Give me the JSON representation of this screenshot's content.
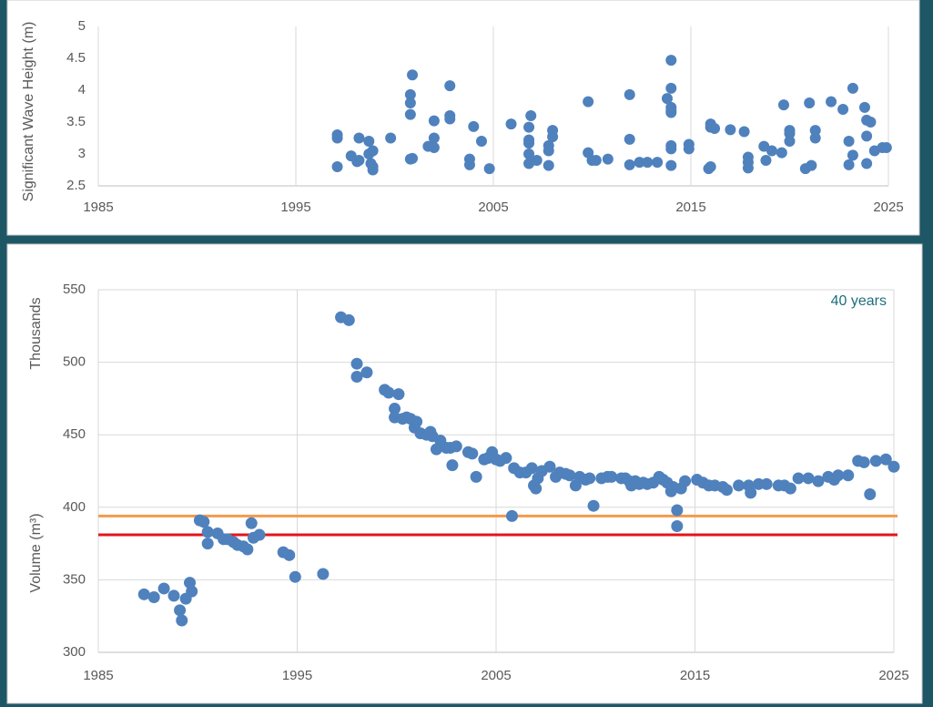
{
  "chart_data": [
    {
      "type": "scatter",
      "y_label": "Significant Wave Height (m)",
      "color": "#4f81bd",
      "grid": "x",
      "xlim": [
        1985,
        2025
      ],
      "xticks": [
        1985,
        1995,
        2005,
        2015,
        2025
      ],
      "ylim": [
        2.5,
        5
      ],
      "yticks": [
        2.5,
        3,
        3.5,
        4,
        4.5,
        5
      ],
      "x": [
        1997.1,
        1997.1,
        1997.1,
        1997.8,
        1998.1,
        1998.2,
        1998.2,
        1998.7,
        1998.7,
        1998.8,
        1998.9,
        1998.9,
        1998.9,
        1999.8,
        2000.8,
        2000.8,
        2000.8,
        2000.8,
        2000.9,
        2000.9,
        2001.7,
        2002.0,
        2002.0,
        2002.0,
        2002.8,
        2002.8,
        2002.8,
        2004.0,
        2003.8,
        2003.8,
        2004.4,
        2004.8,
        2005.9,
        2006.8,
        2006.9,
        2006.8,
        2006.8,
        2006.8,
        2006.8,
        2007.2,
        2007.8,
        2007.8,
        2007.8,
        2008.0,
        2008.0,
        2009.8,
        2009.8,
        2010.0,
        2010.2,
        2010.8,
        2011.9,
        2011.9,
        2011.9,
        2012.4,
        2012.8,
        2013.3,
        2013.8,
        2014.0,
        2014.0,
        2014.0,
        2014.0,
        2014.0,
        2014.0,
        2014.0,
        2014.0,
        2014.9,
        2014.9,
        2015.9,
        2016.0,
        2016.0,
        2016.0,
        2016.2,
        2017.0,
        2017.7,
        2017.9,
        2017.9,
        2017.9,
        2018.7,
        2018.8,
        2019.1,
        2019.6,
        2019.7,
        2020.0,
        2020.0,
        2020.0,
        2020.8,
        2021.0,
        2021.1,
        2021.3,
        2021.3,
        2022.1,
        2022.7,
        2023.0,
        2023.0,
        2023.2,
        2023.2,
        2023.8,
        2023.9,
        2023.9,
        2023.9,
        2024.1,
        2024.3,
        2024.7,
        2024.9
      ],
      "values": [
        3.3,
        3.25,
        2.8,
        2.97,
        2.88,
        3.25,
        2.9,
        3.2,
        3.0,
        2.85,
        3.05,
        2.8,
        2.75,
        3.25,
        3.93,
        3.8,
        3.62,
        2.92,
        4.24,
        2.93,
        3.12,
        3.52,
        3.25,
        3.1,
        4.07,
        3.6,
        3.55,
        3.43,
        2.92,
        2.83,
        3.2,
        2.77,
        3.47,
        3.42,
        3.6,
        3.22,
        3.17,
        3.0,
        2.85,
        2.9,
        3.13,
        3.05,
        2.82,
        3.27,
        3.37,
        3.82,
        3.02,
        2.9,
        2.9,
        2.92,
        3.93,
        3.23,
        2.83,
        2.87,
        2.87,
        2.87,
        3.87,
        4.47,
        4.03,
        3.73,
        3.65,
        3.68,
        3.13,
        3.08,
        2.82,
        3.15,
        3.08,
        2.77,
        2.8,
        3.42,
        3.47,
        3.4,
        3.38,
        3.35,
        2.95,
        2.87,
        2.78,
        3.12,
        2.9,
        3.05,
        3.02,
        3.77,
        3.37,
        3.32,
        3.2,
        2.77,
        3.8,
        2.82,
        3.37,
        3.25,
        3.82,
        3.7,
        3.2,
        2.83,
        4.03,
        2.98,
        3.73,
        2.85,
        3.28,
        3.53,
        3.5,
        3.05,
        3.1,
        3.1
      ]
    },
    {
      "type": "scatter",
      "y_label": "Volume (m³)",
      "y_unit": "Thousands",
      "annotation": "40 years",
      "color": "#4f81bd",
      "grid": "both",
      "xlim": [
        1985,
        2025
      ],
      "xticks": [
        1985,
        1995,
        2005,
        2015,
        2025
      ],
      "ylim": [
        300,
        550
      ],
      "yticks": [
        300,
        350,
        400,
        450,
        500,
        550
      ],
      "reference_lines": [
        {
          "value": 394,
          "color": "#f39a4c"
        },
        {
          "value": 381,
          "color": "#e3151c"
        }
      ],
      "x": [
        1987.3,
        1987.8,
        1988.3,
        1988.8,
        1989.1,
        1989.2,
        1989.4,
        1989.6,
        1989.7,
        1990.1,
        1990.3,
        1990.5,
        1990.5,
        1991.0,
        1991.3,
        1991.5,
        1991.8,
        1992.0,
        1992.3,
        1992.5,
        1992.7,
        1992.8,
        1993.1,
        1994.3,
        1994.6,
        1994.9,
        1996.3,
        1997.2,
        1997.6,
        1998.0,
        1998.0,
        1998.5,
        1999.4,
        1999.6,
        1999.9,
        1999.9,
        2000.1,
        2000.3,
        2000.5,
        2000.7,
        2000.9,
        2001.0,
        2001.2,
        2001.5,
        2001.7,
        2001.8,
        2002.0,
        2002.2,
        2002.5,
        2002.7,
        2002.8,
        2003.0,
        2003.6,
        2003.8,
        2004.0,
        2004.4,
        2004.6,
        2004.8,
        2005.0,
        2005.2,
        2005.5,
        2005.8,
        2005.9,
        2006.2,
        2006.5,
        2006.8,
        2006.9,
        2007.0,
        2007.1,
        2007.3,
        2007.7,
        2008.0,
        2008.2,
        2008.5,
        2008.7,
        2009.0,
        2009.2,
        2009.5,
        2009.7,
        2009.9,
        2010.3,
        2010.6,
        2010.8,
        2011.3,
        2011.5,
        2011.7,
        2011.8,
        2012.0,
        2012.2,
        2012.4,
        2012.6,
        2012.9,
        2013.2,
        2013.4,
        2013.6,
        2013.8,
        2013.9,
        2014.1,
        2014.1,
        2014.3,
        2014.5,
        2015.1,
        2015.4,
        2015.7,
        2016.0,
        2016.4,
        2016.6,
        2017.2,
        2017.7,
        2017.8,
        2018.2,
        2018.6,
        2019.2,
        2019.5,
        2019.8,
        2020.2,
        2020.7,
        2021.2,
        2021.7,
        2022.0,
        2022.2,
        2022.7,
        2023.2,
        2023.5,
        2023.8,
        2024.1,
        2024.6,
        2025.0
      ],
      "values": [
        340,
        338,
        344,
        339,
        329,
        322,
        337,
        348,
        342,
        391,
        390,
        375,
        383,
        382,
        378,
        378,
        376,
        374,
        373,
        371,
        389,
        379,
        381,
        369,
        367,
        352,
        354,
        531,
        529,
        499,
        490,
        493,
        481,
        479,
        468,
        462,
        478,
        461,
        462,
        461,
        455,
        459,
        451,
        450,
        452,
        449,
        440,
        446,
        441,
        441,
        429,
        442,
        438,
        437,
        421,
        433,
        434,
        438,
        433,
        432,
        434,
        394,
        427,
        424,
        424,
        427,
        415,
        413,
        420,
        425,
        428,
        421,
        424,
        423,
        422,
        415,
        421,
        419,
        420,
        401,
        420,
        421,
        421,
        420,
        420,
        418,
        415,
        418,
        416,
        417,
        416,
        417,
        421,
        419,
        417,
        411,
        414,
        398,
        387,
        413,
        418,
        419,
        417,
        415,
        415,
        414,
        412,
        415,
        415,
        410,
        416,
        416,
        415,
        415,
        413,
        420,
        420,
        418,
        421,
        419,
        422,
        422,
        432,
        431,
        409,
        432,
        433,
        428
      ]
    }
  ]
}
